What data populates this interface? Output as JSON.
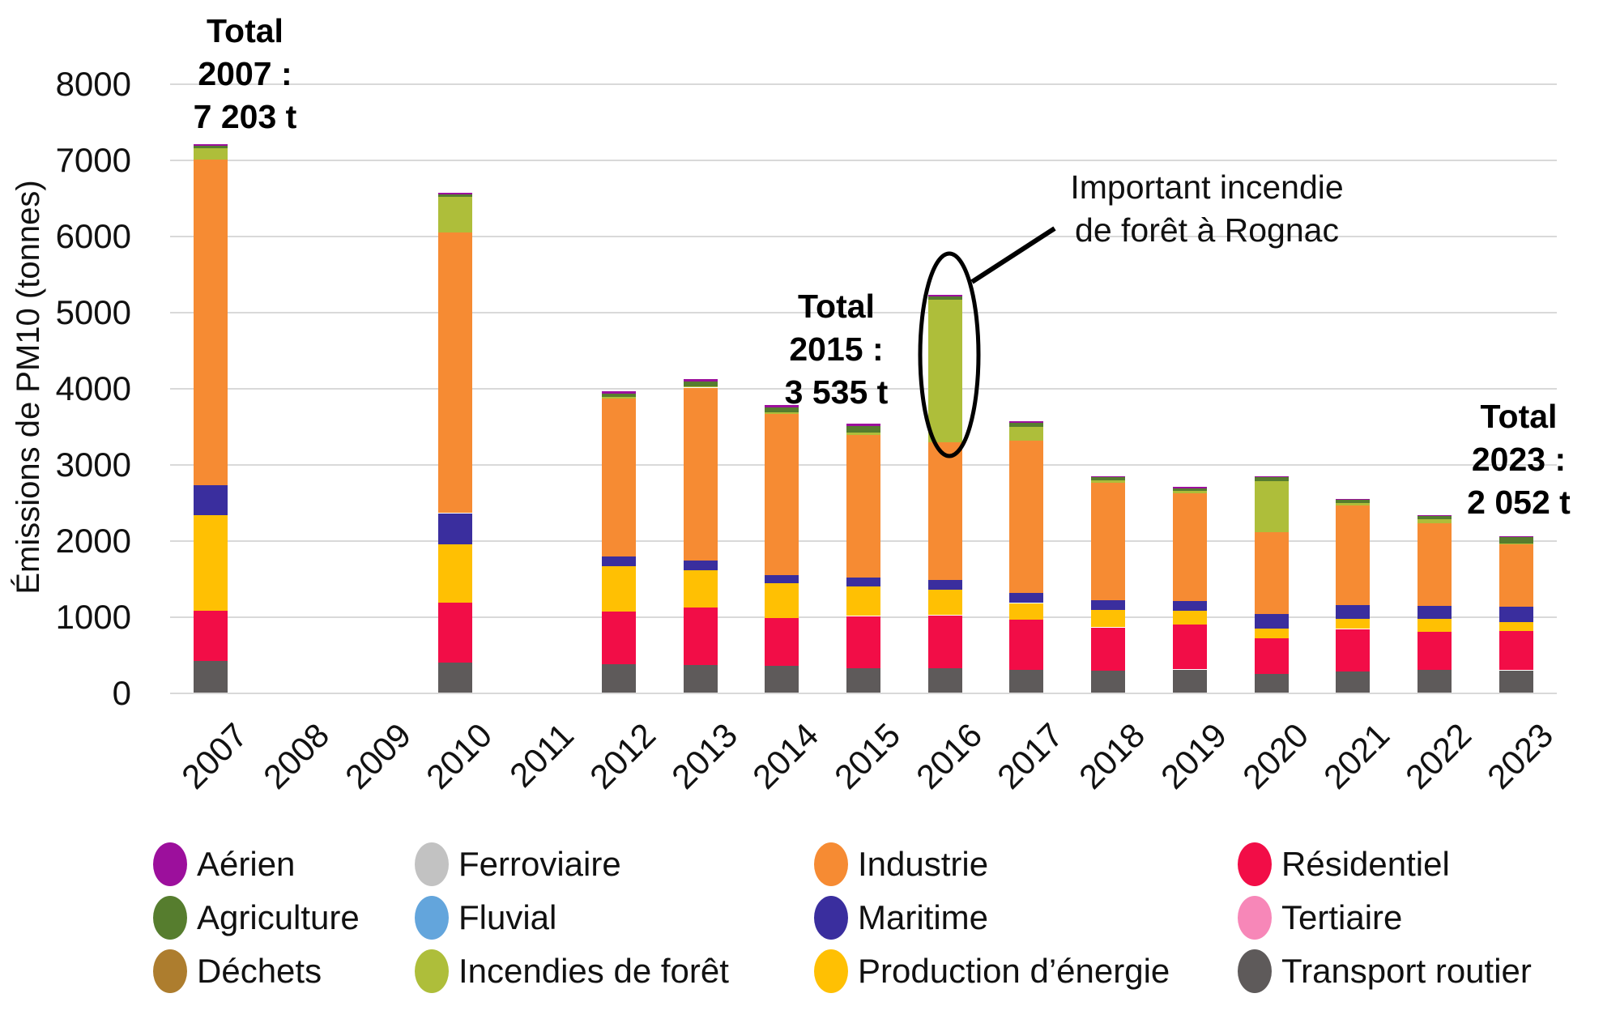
{
  "chart_data": {
    "type": "bar",
    "stacked": true,
    "grid": true,
    "legend_position": "bottom",
    "ylabel": "Émissions de PM10 (tonnes)",
    "ylim": [
      0,
      8000
    ],
    "yticks": [
      0,
      1000,
      2000,
      3000,
      4000,
      5000,
      6000,
      7000,
      8000
    ],
    "categories": [
      "2007",
      "2008",
      "2009",
      "2010",
      "2011",
      "2012",
      "2013",
      "2014",
      "2015",
      "2016",
      "2017",
      "2018",
      "2019",
      "2020",
      "2021",
      "2022",
      "2023"
    ],
    "series": [
      {
        "name": "Transport routier",
        "color": "#5e5a5a",
        "values": [
          420,
          0,
          0,
          400,
          0,
          375,
          365,
          350,
          320,
          320,
          300,
          290,
          300,
          245,
          285,
          300,
          290
        ]
      },
      {
        "name": "Tertiaire",
        "color": "#f787b8",
        "values": [
          0,
          0,
          0,
          0,
          0,
          0,
          0,
          0,
          0,
          0,
          0,
          0,
          0,
          0,
          0,
          0,
          0
        ]
      },
      {
        "name": "Résidentiel",
        "color": "#f20d47",
        "values": [
          655,
          0,
          0,
          785,
          0,
          690,
          755,
          635,
          685,
          695,
          660,
          565,
          590,
          470,
          550,
          500,
          515
        ]
      },
      {
        "name": "Production d’énergie",
        "color": "#ffc003",
        "values": [
          1255,
          0,
          0,
          765,
          0,
          595,
          485,
          455,
          385,
          335,
          215,
          225,
          180,
          125,
          130,
          165,
          120
        ]
      },
      {
        "name": "Maritime",
        "color": "#3a2e9e",
        "values": [
          390,
          0,
          0,
          405,
          0,
          130,
          130,
          105,
          120,
          130,
          140,
          140,
          140,
          200,
          190,
          180,
          200
        ]
      },
      {
        "name": "Industrie",
        "color": "#f68b33",
        "values": [
          4280,
          0,
          0,
          3685,
          0,
          2075,
          2270,
          2115,
          1880,
          1810,
          1995,
          1540,
          1410,
          1070,
          1305,
          1080,
          820
        ]
      },
      {
        "name": "Incendies de forêt",
        "color": "#aebe3a",
        "values": [
          150,
          0,
          0,
          470,
          0,
          20,
          15,
          20,
          30,
          1870,
          180,
          30,
          30,
          670,
          30,
          50,
          12
        ]
      },
      {
        "name": "Fluvial",
        "color": "#63a5dc",
        "values": [
          0,
          0,
          0,
          0,
          0,
          0,
          0,
          0,
          0,
          0,
          0,
          0,
          0,
          0,
          0,
          0,
          0
        ]
      },
      {
        "name": "Ferroviaire",
        "color": "#c2c2c2",
        "values": [
          0,
          0,
          0,
          0,
          0,
          0,
          0,
          0,
          0,
          0,
          0,
          0,
          0,
          0,
          0,
          0,
          0
        ]
      },
      {
        "name": "Déchets",
        "color": "#ad7d2e",
        "values": [
          0,
          0,
          0,
          0,
          0,
          0,
          0,
          0,
          0,
          0,
          0,
          0,
          0,
          0,
          0,
          0,
          0
        ]
      },
      {
        "name": "Agriculture",
        "color": "#567d2e",
        "values": [
          30,
          0,
          0,
          30,
          0,
          40,
          60,
          65,
          85,
          40,
          50,
          40,
          30,
          50,
          40,
          45,
          90
        ]
      },
      {
        "name": "Aérien",
        "color": "#9c0f9c",
        "values": [
          23,
          0,
          0,
          20,
          0,
          30,
          35,
          30,
          30,
          20,
          20,
          15,
          20,
          10,
          15,
          10,
          5
        ]
      }
    ],
    "totals_labeled": {
      "2007": "7 203 t",
      "2015": "3 535 t",
      "2023": "2 052 t"
    }
  },
  "annotations": {
    "total_2007": {
      "line1": "Total",
      "line2": "2007 :",
      "line3": "7 203 t"
    },
    "total_2015": {
      "line1": "Total",
      "line2": "2015 :",
      "line3": "3 535 t"
    },
    "total_2023": {
      "line1": "Total",
      "line2": "2023 :",
      "line3": "2 052 t"
    },
    "fire_note": {
      "line1": "Important incendie",
      "line2": "de forêt à Rognac"
    }
  },
  "legend": {
    "items": [
      {
        "label": "Aérien",
        "color": "#9c0f9c"
      },
      {
        "label": "Agriculture",
        "color": "#567d2e"
      },
      {
        "label": "Déchets",
        "color": "#ad7d2e"
      },
      {
        "label": "Ferroviaire",
        "color": "#c2c2c2"
      },
      {
        "label": "Fluvial",
        "color": "#63a5dc"
      },
      {
        "label": "Incendies de forêt",
        "color": "#aebe3a"
      },
      {
        "label": "Industrie",
        "color": "#f68b33"
      },
      {
        "label": "Maritime",
        "color": "#3a2e9e"
      },
      {
        "label": "Production d’énergie",
        "color": "#ffc003"
      },
      {
        "label": "Résidentiel",
        "color": "#f20d47"
      },
      {
        "label": "Tertiaire",
        "color": "#f787b8"
      },
      {
        "label": "Transport routier",
        "color": "#5e5a5a"
      }
    ]
  }
}
